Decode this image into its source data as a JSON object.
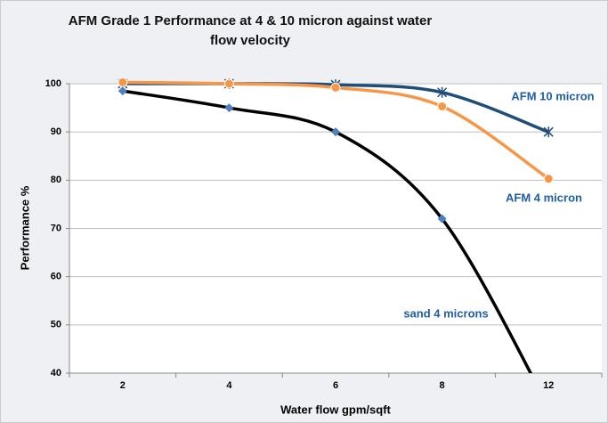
{
  "chart_data": {
    "type": "line",
    "title": "AFM Grade 1 Performance at 4 & 10 micron against water flow velocity",
    "x_label": "Water flow gpm/sqft",
    "y_label": "Performance %",
    "categories": [
      "2",
      "4",
      "6",
      "8",
      "12"
    ],
    "series": [
      {
        "name": "AFM 10 micron",
        "color": "#1f4e79",
        "marker": "asterisk",
        "marker_color": "#1f4e79",
        "values": [
          100,
          100,
          99.8,
          98.2,
          90
        ]
      },
      {
        "name": "AFM 4 micron",
        "color": "#f79646",
        "marker": "circle",
        "marker_color": "#f79646",
        "values": [
          100.3,
          100,
          99.2,
          95.3,
          80.3
        ]
      },
      {
        "name": "sand 4 microns",
        "color": "#000000",
        "marker": "diamond",
        "marker_color": "#4f81bd",
        "values": [
          98.5,
          95,
          90,
          72,
          33
        ]
      }
    ],
    "ylim": [
      40,
      100
    ],
    "yticks": [
      40,
      50,
      60,
      70,
      80,
      90,
      100
    ],
    "grid": true,
    "label_color": "#1f5ea8"
  }
}
